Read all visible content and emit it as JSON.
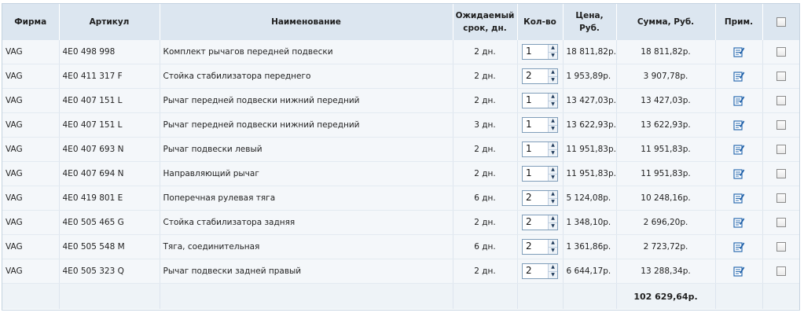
{
  "header": {
    "firm": "Фирма",
    "article": "Артикул",
    "name": "Наименование",
    "term_line1": "Ожидаемый",
    "term_line2": "срок, дн.",
    "qty": "Кол-во",
    "price_line1": "Цена,",
    "price_line2": "Руб.",
    "sum": "Сумма, Руб.",
    "note": "Прим."
  },
  "rows": [
    {
      "firm": "VAG",
      "article": "4E0 498 998",
      "name": "Комплект рычагов передней подвески",
      "term": "2 дн.",
      "qty": "1",
      "price": "18 811,82р.",
      "sum": "18 811,82р."
    },
    {
      "firm": "VAG",
      "article": "4E0 411 317 F",
      "name": "Стойка стабилизатора переднего",
      "term": "2 дн.",
      "qty": "2",
      "price": "1 953,89р.",
      "sum": "3 907,78р."
    },
    {
      "firm": "VAG",
      "article": "4E0 407 151 L",
      "name": "Рычаг передней подвески нижний передний",
      "term": "2 дн.",
      "qty": "1",
      "price": "13 427,03р.",
      "sum": "13 427,03р."
    },
    {
      "firm": "VAG",
      "article": "4E0 407 151 L",
      "name": "Рычаг передней подвески нижний передний",
      "term": "3 дн.",
      "qty": "1",
      "price": "13 622,93р.",
      "sum": "13 622,93р."
    },
    {
      "firm": "VAG",
      "article": "4E0 407 693 N",
      "name": "Рычаг подвески левый",
      "term": "2 дн.",
      "qty": "1",
      "price": "11 951,83р.",
      "sum": "11 951,83р."
    },
    {
      "firm": "VAG",
      "article": "4E0 407 694 N",
      "name": "Направляющий рычаг",
      "term": "2 дн.",
      "qty": "1",
      "price": "11 951,83р.",
      "sum": "11 951,83р."
    },
    {
      "firm": "VAG",
      "article": "4E0 419 801 E",
      "name": "Поперечная рулевая тяга",
      "term": "6 дн.",
      "qty": "2",
      "price": "5 124,08р.",
      "sum": "10 248,16р."
    },
    {
      "firm": "VAG",
      "article": "4E0 505 465 G",
      "name": "Стойка стабилизатора задняя",
      "term": "2 дн.",
      "qty": "2",
      "price": "1 348,10р.",
      "sum": "2 696,20р."
    },
    {
      "firm": "VAG",
      "article": "4E0 505 548 M",
      "name": "Тяга, соединительная",
      "term": "6 дн.",
      "qty": "2",
      "price": "1 361,86р.",
      "sum": "2 723,72р."
    },
    {
      "firm": "VAG",
      "article": "4E0 505 323 Q",
      "name": "Рычаг подвески задней правый",
      "term": "2 дн.",
      "qty": "2",
      "price": "6 644,17р.",
      "sum": "13 288,34р."
    }
  ],
  "total": "102 629,64р.",
  "icons": {
    "note": "edit-note-icon",
    "spin": "spin-arrows-icon"
  },
  "colors": {
    "header_bg": "#dce6f0",
    "row_bg": "#f4f7fa",
    "icon_blue": "#2b6cb0"
  }
}
